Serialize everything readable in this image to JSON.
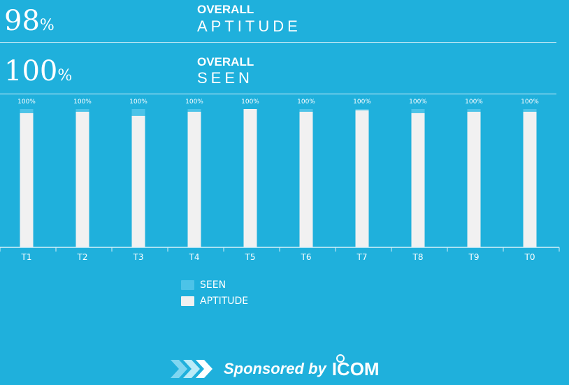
{
  "stats": [
    {
      "value": "98",
      "unit": "%",
      "label_top": "OVERALL",
      "label_main": "APTITUDE"
    },
    {
      "value": "100",
      "unit": "%",
      "label_top": "OVERALL",
      "label_main": "SEEN"
    }
  ],
  "colors": {
    "background": "#1fb0dc",
    "aptitude": "#f1f1f1",
    "seen": "#4cc3e8",
    "axis": "#d9f1f9"
  },
  "legend": [
    {
      "label": "SEEN",
      "color": "#4cc3e8"
    },
    {
      "label": "APTITUDE",
      "color": "#f1f1f1"
    }
  ],
  "sponsor": {
    "text": "Sponsored by",
    "brand": "ICOM",
    "icon": "chevron-arrows-icon"
  },
  "chart_data": {
    "type": "bar",
    "categories": [
      "T1",
      "T2",
      "T3",
      "T4",
      "T5",
      "T6",
      "T7",
      "T8",
      "T9",
      "T0"
    ],
    "series": [
      {
        "name": "SEEN",
        "values": [
          100,
          100,
          100,
          100,
          100,
          100,
          100,
          100,
          100,
          100
        ]
      },
      {
        "name": "APTITUDE",
        "values": [
          97,
          98,
          95,
          98,
          100,
          98,
          99,
          97,
          98,
          98
        ]
      }
    ],
    "data_labels": [
      "100%",
      "100%",
      "100%",
      "100%",
      "100%",
      "100%",
      "100%",
      "100%",
      "100%",
      "100%"
    ],
    "ylim": [
      0,
      100
    ],
    "xlabel": "",
    "ylabel": "",
    "grid": false,
    "legend_position": "bottom"
  }
}
